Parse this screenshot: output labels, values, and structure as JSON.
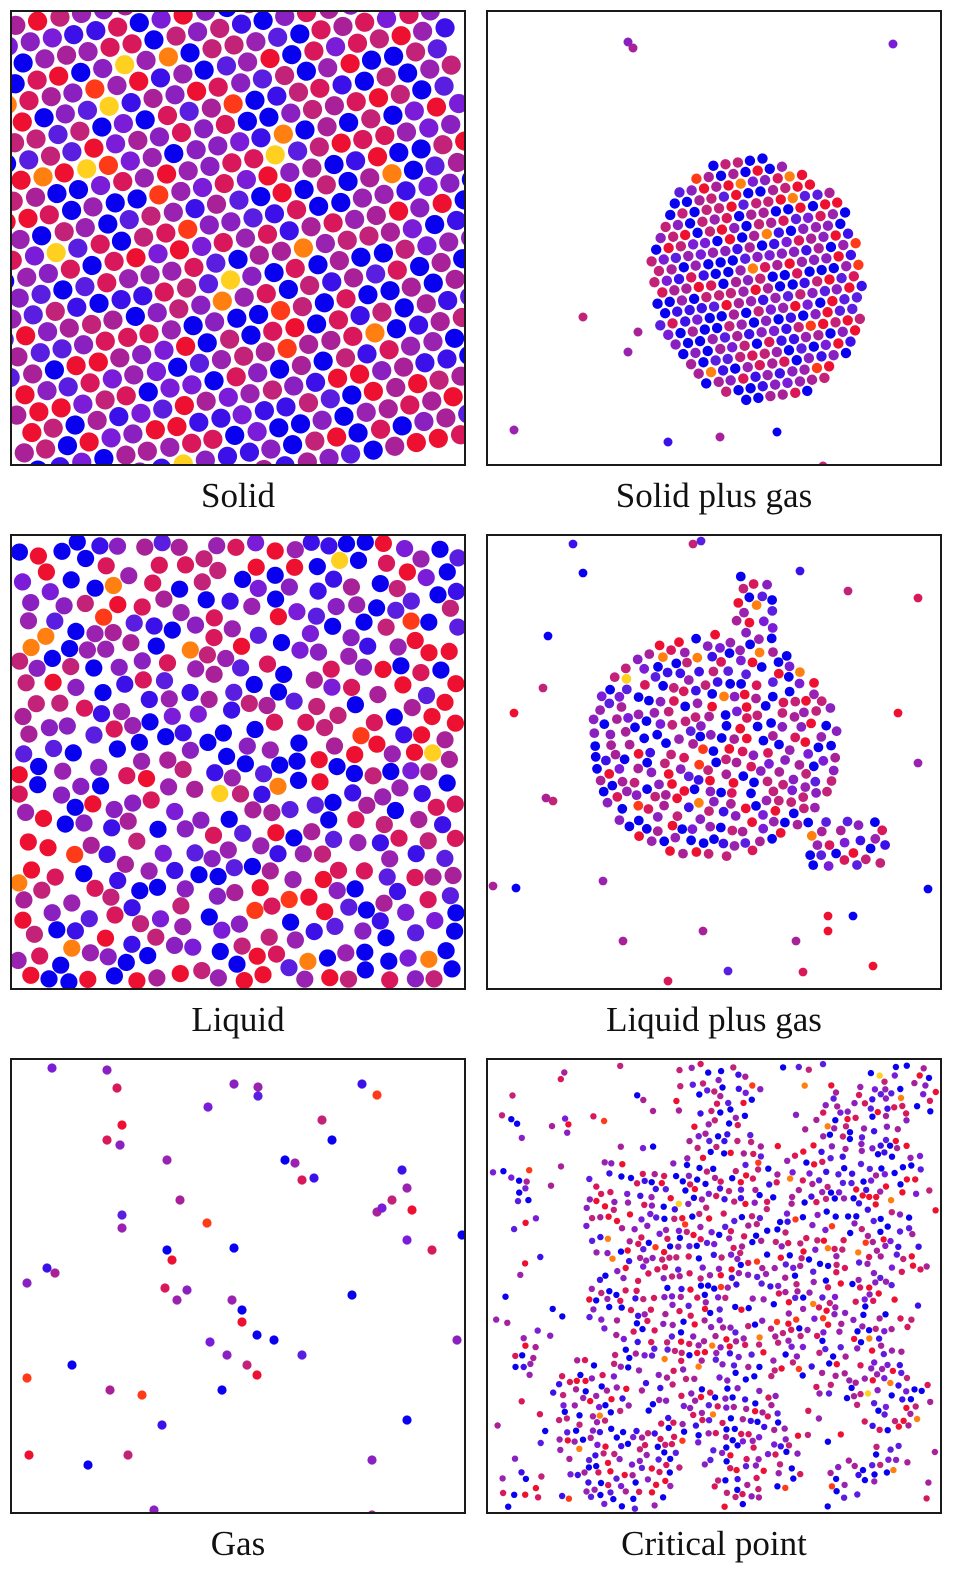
{
  "figure": {
    "palette": [
      "#0a00f0",
      "#3c10e8",
      "#5a1ee0",
      "#7a1cd8",
      "#8a20c0",
      "#9a22b0",
      "#a82198",
      "#c22277",
      "#d8185a",
      "#ee1030",
      "#ff3a18",
      "#ff8010",
      "#ffd020"
    ],
    "panels": [
      {
        "key": "solid",
        "caption": "Solid",
        "phase": "solid"
      },
      {
        "key": "solid_gas",
        "caption": "Solid plus gas",
        "phase": "solid-plus-gas"
      },
      {
        "key": "liquid",
        "caption": "Liquid",
        "phase": "liquid"
      },
      {
        "key": "liquid_gas",
        "caption": "Liquid plus gas",
        "phase": "liquid-plus-gas"
      },
      {
        "key": "gas",
        "caption": "Gas",
        "phase": "gas"
      },
      {
        "key": "critical",
        "caption": "Critical point",
        "phase": "critical"
      }
    ]
  }
}
